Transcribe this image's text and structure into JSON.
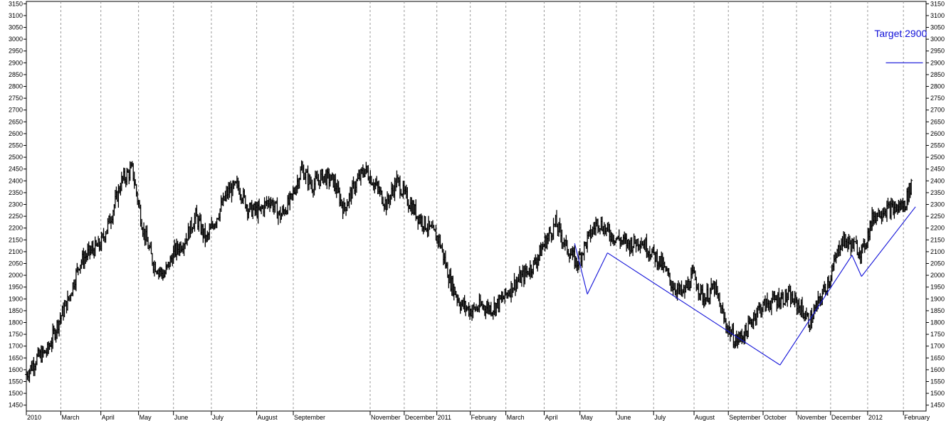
{
  "chart_data": {
    "type": "line",
    "title": "",
    "xlabel": "",
    "ylabel": "",
    "ylim": [
      1425,
      3160
    ],
    "yticks": [
      1450,
      1500,
      1550,
      1600,
      1650,
      1700,
      1750,
      1800,
      1850,
      1900,
      1950,
      2000,
      2050,
      2100,
      2150,
      2200,
      2250,
      2300,
      2350,
      2400,
      2450,
      2500,
      2550,
      2600,
      2650,
      2700,
      2750,
      2800,
      2850,
      2900,
      2950,
      3000,
      3050,
      3100,
      3150
    ],
    "grid": "vertical dashed at month starts",
    "xticks": [
      {
        "label": "2010",
        "t": 0.0
      },
      {
        "label": "March",
        "t": 1.63
      },
      {
        "label": "April",
        "t": 3.52
      },
      {
        "label": "May",
        "t": 5.3
      },
      {
        "label": "June",
        "t": 6.95
      },
      {
        "label": "July",
        "t": 8.74
      },
      {
        "label": "August",
        "t": 10.88
      },
      {
        "label": "September",
        "t": 12.61
      },
      {
        "label": "November",
        "t": 16.24
      },
      {
        "label": "December",
        "t": 17.85
      },
      {
        "label": "2011",
        "t": 19.39
      },
      {
        "label": "February",
        "t": 20.97
      },
      {
        "label": "March",
        "t": 22.65
      },
      {
        "label": "April",
        "t": 24.46
      },
      {
        "label": "May",
        "t": 26.15
      },
      {
        "label": "June",
        "t": 27.87
      },
      {
        "label": "July",
        "t": 29.63
      },
      {
        "label": "August",
        "t": 31.54
      },
      {
        "label": "September",
        "t": 33.16
      },
      {
        "label": "October",
        "t": 34.8
      },
      {
        "label": "November",
        "t": 36.38
      },
      {
        "label": "December",
        "t": 37.99
      },
      {
        "label": "2012",
        "t": 39.74
      },
      {
        "label": "February",
        "t": 41.43
      }
    ],
    "price_series": {
      "name": "",
      "style": "ohlc bars",
      "x": [
        0.0,
        0.5,
        1.0,
        1.5,
        2.0,
        2.5,
        3.0,
        3.5,
        4.0,
        4.5,
        5.0,
        5.5,
        6.0,
        6.5,
        7.0,
        7.5,
        8.0,
        8.5,
        9.0,
        9.5,
        10.0,
        10.5,
        11.0,
        11.5,
        12.0,
        12.5,
        13.0,
        13.5,
        14.0,
        14.5,
        15.0,
        15.5,
        16.0,
        16.5,
        17.0,
        17.5,
        18.0,
        18.5,
        19.0,
        19.5,
        20.0,
        20.5,
        21.0,
        21.5,
        22.0,
        22.5,
        23.0,
        23.5,
        24.0,
        24.5,
        25.0,
        25.5,
        26.0,
        26.5,
        27.0,
        27.5,
        28.0,
        28.5,
        29.0,
        29.5,
        30.0,
        30.5,
        31.0,
        31.5,
        32.0,
        32.5,
        33.0,
        33.5,
        34.0,
        34.5,
        35.0,
        35.5,
        36.0,
        36.5,
        37.0,
        37.5,
        38.0,
        38.5,
        39.0,
        39.5,
        40.0,
        40.5,
        41.0,
        41.5,
        41.8
      ],
      "close": [
        1580,
        1650,
        1680,
        1800,
        1900,
        2050,
        2100,
        2130,
        2250,
        2400,
        2450,
        2200,
        2050,
        2000,
        2100,
        2150,
        2250,
        2150,
        2250,
        2350,
        2380,
        2280,
        2270,
        2320,
        2250,
        2320,
        2450,
        2380,
        2420,
        2400,
        2280,
        2380,
        2450,
        2380,
        2300,
        2400,
        2320,
        2250,
        2200,
        2150,
        1980,
        1880,
        1850,
        1870,
        1860,
        1900,
        1960,
        2000,
        2050,
        2140,
        2220,
        2120,
        2050,
        2150,
        2230,
        2180,
        2150,
        2130,
        2150,
        2100,
        2050,
        1960,
        1920,
        2000,
        1900,
        1950,
        1800,
        1720,
        1760,
        1850,
        1880,
        1900,
        1910,
        1870,
        1800,
        1900,
        2000,
        2150,
        2130,
        2100,
        2250,
        2280,
        2280,
        2300,
        2390
      ]
    },
    "overlays": [
      {
        "type": "segment",
        "from": [
          25.9,
          2135
        ],
        "to": [
          26.5,
          1920
        ]
      },
      {
        "type": "segment",
        "from": [
          26.5,
          1920
        ],
        "to": [
          27.45,
          2095
        ]
      },
      {
        "type": "segment",
        "from": [
          27.45,
          2095
        ],
        "to": [
          35.6,
          1620
        ]
      },
      {
        "type": "segment",
        "from": [
          35.6,
          1620
        ],
        "to": [
          39.0,
          2085
        ]
      },
      {
        "type": "segment",
        "from": [
          39.0,
          2085
        ],
        "to": [
          39.45,
          1995
        ]
      },
      {
        "type": "segment",
        "from": [
          39.45,
          1995
        ],
        "to": [
          42.0,
          2290
        ]
      },
      {
        "type": "segment",
        "from": [
          40.6,
          2900
        ],
        "to": [
          42.35,
          2900
        ]
      }
    ],
    "annotations": [
      {
        "text": "Target 2900",
        "x": 41.3,
        "y": 3010
      }
    ],
    "colors": {
      "price": "#000000",
      "overlay": "#1010d8",
      "grid": "#9a9a9a",
      "axis": "#000000"
    }
  }
}
